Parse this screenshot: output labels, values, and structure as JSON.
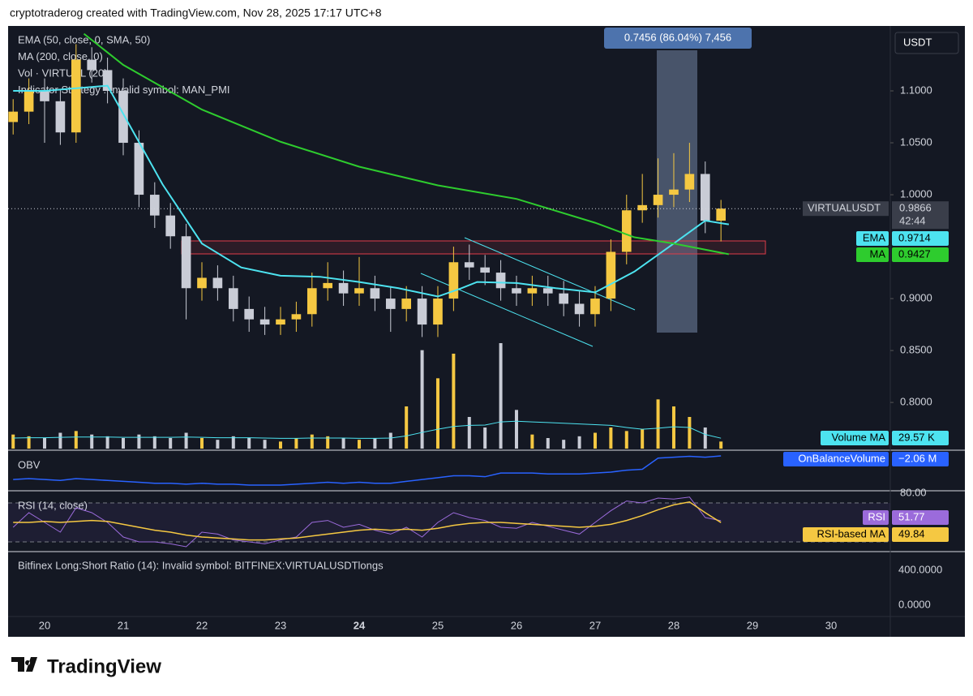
{
  "header": {
    "text": "cryptotraderog created with TradingView.com, Nov 28, 2025 17:17 UTC+8"
  },
  "footer": {
    "brand": "TradingView"
  },
  "chart_data": {
    "type": "candlestick",
    "currency": "USDT",
    "legend": [
      "EMA (50, close, 0, SMA, 50)",
      "MA (200, close, 0)",
      "Vol · VIRTUAL (20)",
      "Indicator Strategy : Invalid symbol: MAN_PMI"
    ],
    "measure_label": "0.7456 (86.04%) 7,456",
    "symbol": "VIRTUALUSDT",
    "countdown": "42:44",
    "colors": {
      "up": "#f5c842",
      "down": "#c9ccd6"
    },
    "xlim": [
      19.536,
      30.753
    ],
    "xticks": [
      20,
      21,
      22,
      23,
      24,
      25,
      26,
      27,
      28,
      29,
      30
    ],
    "emphasized_xtick": 24,
    "ylim": [
      0.754,
      1.1625
    ],
    "yticks": [
      {
        "value": 1.1,
        "label": "1.1000"
      },
      {
        "value": 1.05,
        "label": "1.0500"
      },
      {
        "value": 1.0,
        "label": "1.0000"
      },
      {
        "value": 0.9,
        "label": "0.9000"
      },
      {
        "value": 0.85,
        "label": "0.8500"
      },
      {
        "value": 0.8,
        "label": "0.8000"
      }
    ],
    "candles": {
      "x": [
        19.6,
        19.8,
        20.0,
        20.2,
        20.4,
        20.6,
        20.8,
        21.0,
        21.2,
        21.4,
        21.6,
        21.8,
        22.0,
        22.2,
        22.4,
        22.6,
        22.8,
        23.0,
        23.2,
        23.4,
        23.6,
        23.8,
        24.0,
        24.2,
        24.4,
        24.6,
        24.8,
        25.0,
        25.2,
        25.4,
        25.6,
        25.8,
        26.0,
        26.2,
        26.4,
        26.6,
        26.8,
        27.0,
        27.2,
        27.4,
        27.6,
        27.8,
        28.0,
        28.2,
        28.4,
        28.6
      ],
      "open": [
        1.07,
        1.08,
        1.1,
        1.09,
        1.06,
        1.13,
        1.12,
        1.1,
        1.05,
        1.0,
        0.98,
        0.96,
        0.91,
        0.92,
        0.91,
        0.89,
        0.88,
        0.875,
        0.88,
        0.885,
        0.91,
        0.915,
        0.905,
        0.91,
        0.9,
        0.89,
        0.9,
        0.875,
        0.9,
        0.935,
        0.93,
        0.925,
        0.91,
        0.905,
        0.91,
        0.905,
        0.895,
        0.885,
        0.9,
        0.945,
        0.985,
        0.99,
        1.0,
        1.005,
        1.02,
        0.975
      ],
      "high": [
        1.092,
        1.112,
        1.112,
        1.102,
        1.145,
        1.142,
        1.132,
        1.112,
        1.062,
        1.012,
        0.992,
        0.972,
        0.935,
        0.932,
        0.922,
        0.902,
        0.892,
        0.892,
        0.897,
        0.925,
        0.935,
        0.927,
        0.94,
        0.922,
        0.912,
        0.912,
        0.912,
        0.912,
        0.95,
        0.952,
        0.942,
        0.937,
        0.922,
        0.922,
        0.922,
        0.917,
        0.907,
        0.912,
        0.957,
        1.0,
        1.02,
        1.035,
        1.04,
        1.05,
        1.032,
        0.995
      ],
      "low": [
        1.058,
        1.068,
        1.05,
        1.048,
        1.05,
        1.108,
        1.088,
        1.038,
        0.988,
        0.968,
        0.948,
        0.88,
        0.898,
        0.898,
        0.878,
        0.868,
        0.865,
        0.865,
        0.868,
        0.873,
        0.898,
        0.893,
        0.893,
        0.888,
        0.868,
        0.878,
        0.863,
        0.863,
        0.888,
        0.918,
        0.913,
        0.898,
        0.893,
        0.893,
        0.893,
        0.883,
        0.873,
        0.873,
        0.888,
        0.933,
        0.973,
        0.978,
        0.988,
        0.993,
        0.963,
        0.955
      ],
      "close": [
        1.08,
        1.1,
        1.09,
        1.06,
        1.13,
        1.12,
        1.1,
        1.05,
        1.0,
        0.98,
        0.96,
        0.91,
        0.92,
        0.91,
        0.89,
        0.88,
        0.875,
        0.88,
        0.885,
        0.91,
        0.915,
        0.905,
        0.91,
        0.9,
        0.89,
        0.9,
        0.875,
        0.9,
        0.935,
        0.93,
        0.925,
        0.91,
        0.905,
        0.91,
        0.905,
        0.895,
        0.885,
        0.9,
        0.945,
        0.985,
        0.99,
        1.0,
        1.005,
        1.02,
        0.975,
        0.9866
      ]
    },
    "lines": [
      {
        "name": "EMA",
        "color": "#4de3f0",
        "x": [
          19.6,
          20.0,
          20.8,
          21.5,
          22.0,
          22.5,
          23.0,
          23.5,
          24.0,
          24.5,
          25.0,
          25.3,
          25.5,
          26.0,
          26.5,
          27.0,
          27.5,
          28.0,
          28.4,
          28.7
        ],
        "values": [
          1.1,
          1.1,
          1.105,
          1.01,
          0.953,
          0.93,
          0.922,
          0.921,
          0.916,
          0.91,
          0.902,
          0.91,
          0.916,
          0.915,
          0.91,
          0.906,
          0.926,
          0.953,
          0.975,
          0.9714
        ]
      },
      {
        "name": "MA",
        "color": "#2ecc2e",
        "x": [
          20.5,
          21.0,
          22.0,
          23.0,
          24.0,
          25.0,
          26.0,
          27.0,
          27.5,
          28.0,
          28.7
        ],
        "values": [
          1.155,
          1.125,
          1.082,
          1.051,
          1.027,
          1.009,
          0.996,
          0.973,
          0.959,
          0.953,
          0.9427
        ]
      }
    ],
    "volume": {
      "values": [
        40,
        35,
        30,
        45,
        50,
        40,
        35,
        30,
        40,
        35,
        30,
        45,
        30,
        25,
        35,
        30,
        25,
        20,
        30,
        40,
        35,
        30,
        25,
        30,
        45,
        120,
        280,
        200,
        270,
        90,
        60,
        300,
        110,
        40,
        30,
        25,
        35,
        45,
        60,
        50,
        55,
        140,
        120,
        90,
        60,
        20
      ]
    },
    "volume_ma": {
      "name": "Volume MA",
      "color": "#4de3f0",
      "values": [
        30,
        31,
        31,
        32,
        33,
        33,
        33,
        32,
        32,
        32,
        32,
        33,
        32,
        31,
        31,
        31,
        30,
        29,
        29,
        30,
        30,
        30,
        29,
        29,
        30,
        36,
        46,
        55,
        63,
        66,
        67,
        76,
        78,
        76,
        74,
        72,
        70,
        68,
        66,
        60,
        55,
        58,
        62,
        60,
        40,
        29.57
      ],
      "value_label": "29.57 K"
    },
    "obv": {
      "title": "OBV",
      "name": "OnBalanceVolume",
      "color": "#2962ff",
      "values": [
        -4.6,
        -4.5,
        -4.6,
        -4.7,
        -4.5,
        -4.6,
        -4.7,
        -4.8,
        -4.9,
        -5.0,
        -5.0,
        -5.1,
        -5.0,
        -5.1,
        -5.1,
        -5.2,
        -5.2,
        -5.2,
        -5.1,
        -5.0,
        -4.9,
        -5.0,
        -4.9,
        -5.0,
        -5.0,
        -4.8,
        -4.6,
        -4.4,
        -4.2,
        -4.2,
        -4.3,
        -3.9,
        -3.9,
        -3.9,
        -4.0,
        -4.0,
        -4.0,
        -3.9,
        -3.8,
        -3.6,
        -3.5,
        -2.3,
        -2.2,
        -2.1,
        -2.2,
        -2.06
      ],
      "value_label": "−2.06 M"
    },
    "rsi": {
      "title": "RSI (14, close)",
      "name": "RSI",
      "color": "#9b6bdb",
      "values": [
        45,
        60,
        50,
        40,
        65,
        60,
        50,
        35,
        30,
        30,
        28,
        25,
        40,
        38,
        32,
        30,
        28,
        32,
        35,
        50,
        52,
        45,
        48,
        42,
        38,
        45,
        35,
        50,
        60,
        55,
        52,
        45,
        44,
        50,
        46,
        42,
        38,
        50,
        62,
        72,
        70,
        75,
        74,
        76,
        55,
        51.77
      ],
      "ma_name": "RSI-based MA",
      "ma_color": "#f5c842",
      "ma_values": [
        50,
        50,
        51,
        50,
        51,
        52,
        51,
        48,
        45,
        42,
        40,
        37,
        35,
        34,
        33,
        32,
        32,
        33,
        34,
        36,
        38,
        40,
        42,
        43,
        42,
        43,
        42,
        44,
        47,
        49,
        50,
        50,
        49,
        48,
        47,
        46,
        45,
        46,
        48,
        52,
        57,
        63,
        68,
        71,
        60,
        49.84
      ],
      "ylim": [
        20,
        82.5
      ],
      "yticks": [
        {
          "value": 80,
          "label": "80.00"
        }
      ],
      "bands": [
        30,
        70
      ]
    },
    "ls_ratio": {
      "title": "Bitfinex Long:Short Ratio (14): Invalid symbol: BITFINEX:VIRTUALUSDTlongs",
      "ylim": [
        -130,
        614
      ],
      "yticks": [
        {
          "value": 400,
          "label": "400.0000"
        },
        {
          "value": 0,
          "label": "0.0000"
        }
      ]
    }
  }
}
